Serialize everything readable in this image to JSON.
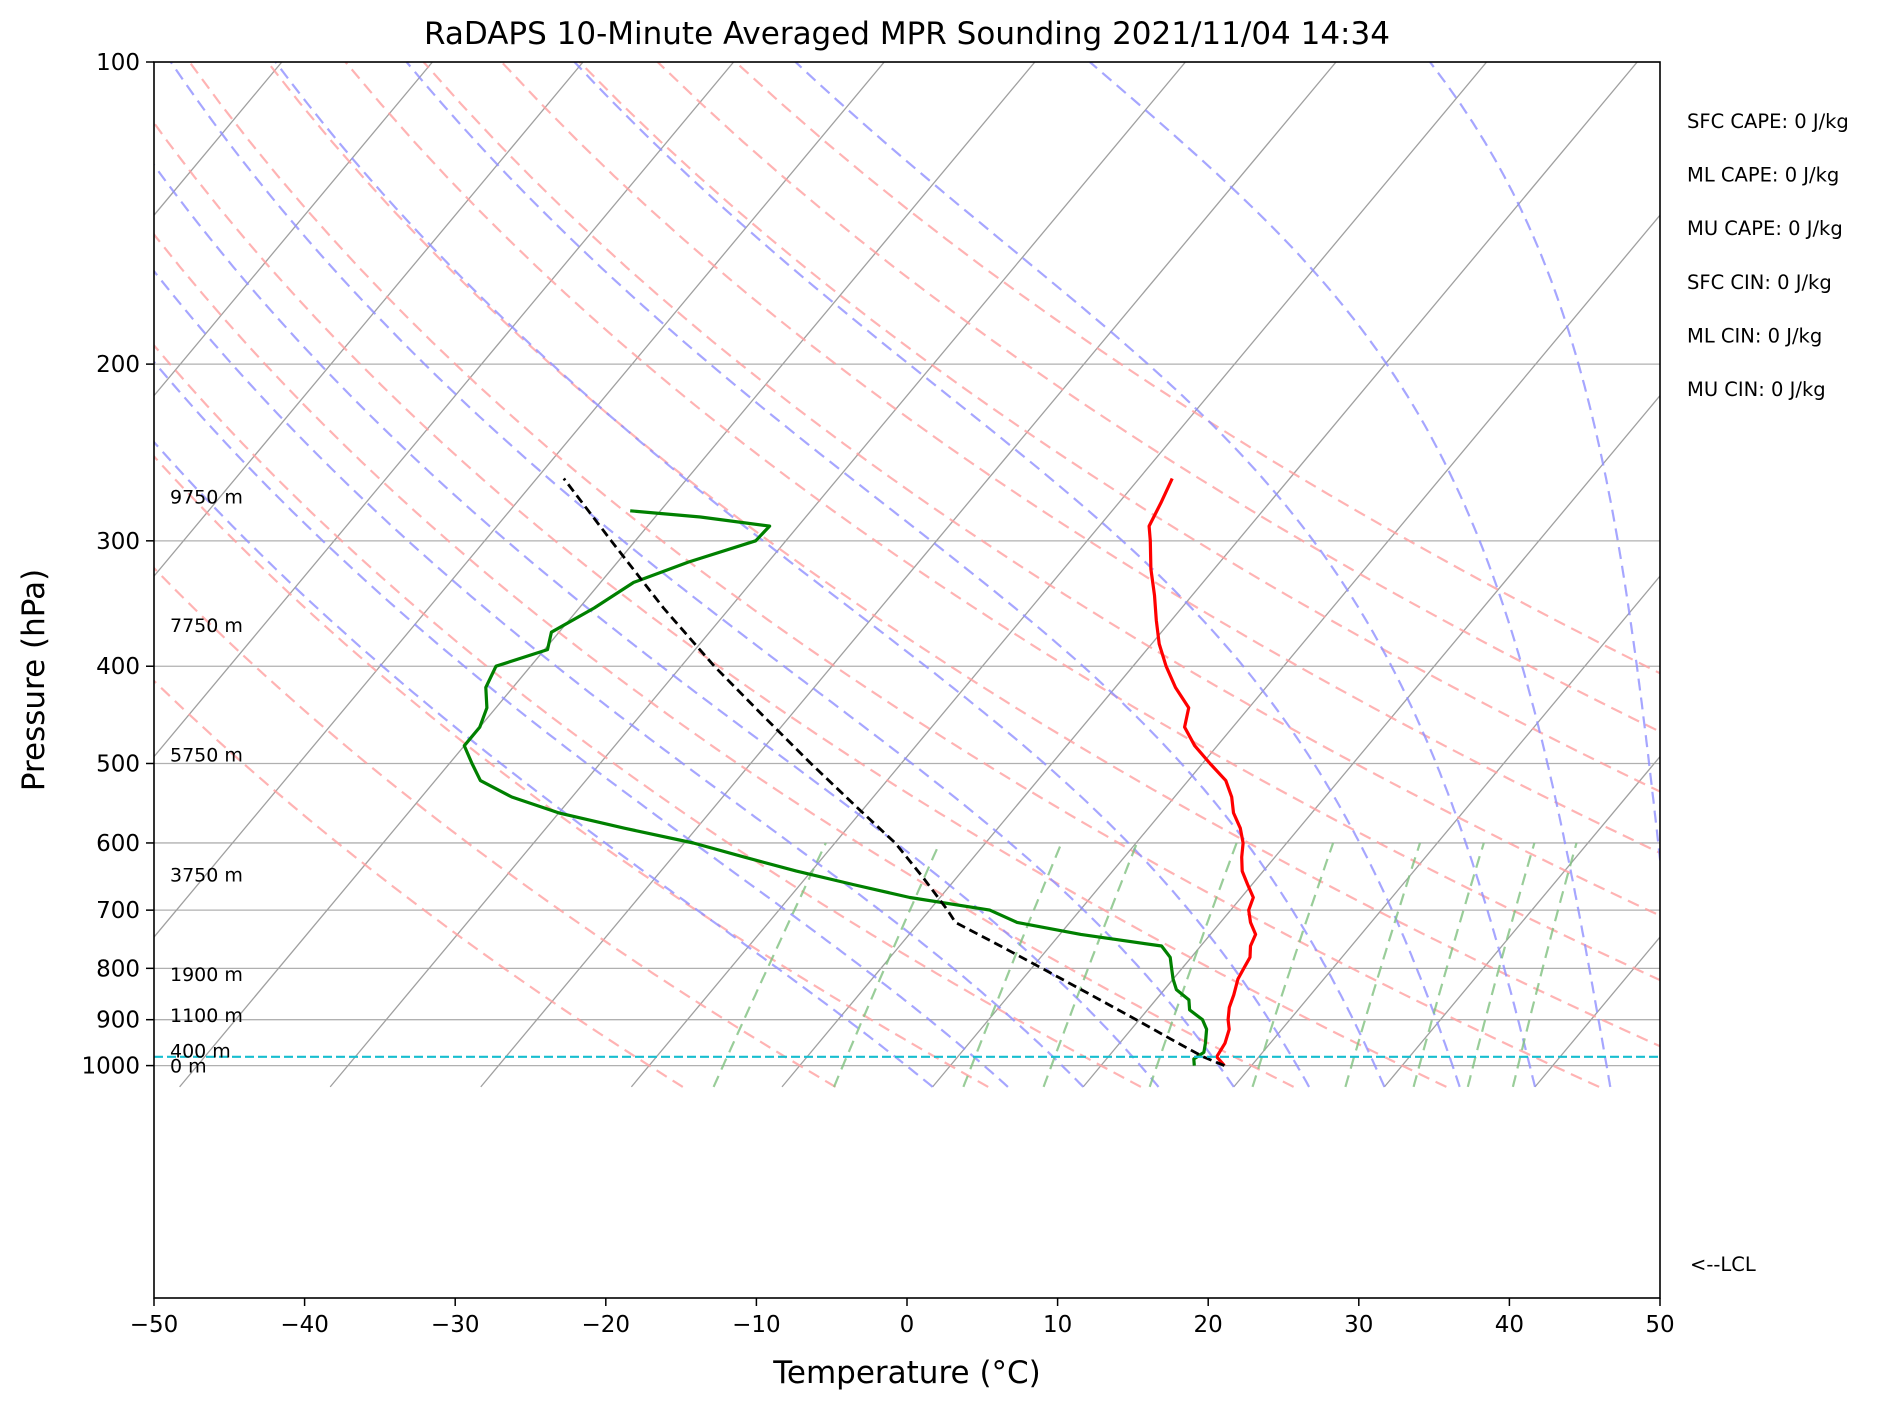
{
  "chart_data": {
    "type": "line",
    "title": "RaDAPS 10-Minute Averaged MPR Sounding 2021/11/04 14:34",
    "xlabel": "Temperature (°C)",
    "ylabel": "Pressure (hPa)",
    "xlim": [
      -50,
      50
    ],
    "ylim": [
      1050,
      100
    ],
    "y_scale": "log",
    "grid": true,
    "x_ticks": [
      -50,
      -40,
      -30,
      -20,
      -10,
      0,
      10,
      20,
      30,
      40,
      50
    ],
    "x_tick_labels": [
      "−50",
      "−40",
      "−30",
      "−20",
      "−10",
      "0",
      "10",
      "20",
      "30",
      "40",
      "50"
    ],
    "y_ticks": [
      100,
      200,
      300,
      400,
      500,
      600,
      700,
      800,
      900,
      1000
    ],
    "y_tick_labels": [
      "100",
      "200",
      "300",
      "400",
      "500",
      "600",
      "700",
      "800",
      "900",
      "1000"
    ],
    "skew": true,
    "isotherms": [
      -120,
      -110,
      -100,
      -90,
      -80,
      -70,
      -60,
      -50,
      -40,
      -30,
      -20,
      -10,
      0,
      10,
      20,
      30,
      40,
      50
    ],
    "dry_adiabats_theta_c": [
      -30,
      -20,
      -10,
      0,
      10,
      20,
      30,
      40,
      50,
      60,
      70,
      80,
      90,
      100
    ],
    "moist_adiabats_start_c": [
      -10,
      -5,
      0,
      5,
      10,
      15,
      20,
      25,
      30,
      35,
      40
    ],
    "mixing_ratio_lines_gkg": [
      0.5,
      1,
      2,
      3,
      5,
      8,
      12,
      16,
      20,
      24
    ],
    "series": [
      {
        "role": "temperature",
        "color": "#ff0000",
        "points": [
          [
            1000,
            8.2
          ],
          [
            980,
            7.2
          ],
          [
            950,
            7.0
          ],
          [
            920,
            6.5
          ],
          [
            900,
            5.9
          ],
          [
            875,
            5.3
          ],
          [
            850,
            4.9
          ],
          [
            820,
            4.3
          ],
          [
            800,
            4.1
          ],
          [
            780,
            3.9
          ],
          [
            760,
            3.3
          ],
          [
            740,
            3.0
          ],
          [
            720,
            2.0
          ],
          [
            700,
            1.2
          ],
          [
            680,
            0.8
          ],
          [
            660,
            -0.3
          ],
          [
            640,
            -1.4
          ],
          [
            620,
            -2.2
          ],
          [
            600,
            -2.9
          ],
          [
            580,
            -3.9
          ],
          [
            560,
            -5.2
          ],
          [
            540,
            -6.2
          ],
          [
            520,
            -7.5
          ],
          [
            500,
            -9.5
          ],
          [
            480,
            -11.5
          ],
          [
            460,
            -13.2
          ],
          [
            440,
            -14.0
          ],
          [
            420,
            -16.0
          ],
          [
            400,
            -17.8
          ],
          [
            380,
            -19.5
          ],
          [
            360,
            -21.0
          ],
          [
            340,
            -22.5
          ],
          [
            320,
            -24.2
          ],
          [
            300,
            -25.8
          ],
          [
            290,
            -26.7
          ],
          [
            275,
            -27.2
          ],
          [
            260,
            -27.8
          ]
        ]
      },
      {
        "role": "dewpoint",
        "color": "#008000",
        "points": [
          [
            1000,
            6.2
          ],
          [
            985,
            5.8
          ],
          [
            970,
            6.1
          ],
          [
            950,
            5.7
          ],
          [
            920,
            5.0
          ],
          [
            900,
            4.2
          ],
          [
            880,
            2.8
          ],
          [
            860,
            2.2
          ],
          [
            840,
            0.8
          ],
          [
            820,
            0.0
          ],
          [
            800,
            -0.7
          ],
          [
            780,
            -1.4
          ],
          [
            760,
            -2.6
          ],
          [
            740,
            -8.6
          ],
          [
            720,
            -13.5
          ],
          [
            700,
            -16.0
          ],
          [
            680,
            -22.0
          ],
          [
            660,
            -26.5
          ],
          [
            640,
            -31.0
          ],
          [
            620,
            -35.2
          ],
          [
            600,
            -39.4
          ],
          [
            580,
            -44.8
          ],
          [
            560,
            -50.0
          ],
          [
            540,
            -54.0
          ],
          [
            520,
            -57.0
          ],
          [
            500,
            -58.5
          ],
          [
            480,
            -60.0
          ],
          [
            460,
            -60.0
          ],
          [
            440,
            -60.6
          ],
          [
            420,
            -61.8
          ],
          [
            400,
            -62.3
          ],
          [
            385,
            -59.8
          ],
          [
            370,
            -60.5
          ],
          [
            350,
            -59.0
          ],
          [
            330,
            -57.8
          ],
          [
            315,
            -55.3
          ],
          [
            300,
            -52.0
          ],
          [
            290,
            -51.9
          ],
          [
            284,
            -57.0
          ],
          [
            280,
            -62.0
          ]
        ]
      },
      {
        "role": "parcel",
        "color": "#000000",
        "dashed": true,
        "points": [
          [
            1000,
            8.2
          ],
          [
            980,
            6.3
          ],
          [
            950,
            3.9
          ],
          [
            900,
            -0.2
          ],
          [
            850,
            -4.6
          ],
          [
            800,
            -9.3
          ],
          [
            760,
            -13.3
          ],
          [
            720,
            -17.6
          ],
          [
            700,
            -18.8
          ],
          [
            650,
            -22.2
          ],
          [
            600,
            -26.0
          ],
          [
            550,
            -30.8
          ],
          [
            500,
            -36.0
          ],
          [
            450,
            -41.6
          ],
          [
            400,
            -47.8
          ],
          [
            350,
            -54.4
          ],
          [
            300,
            -61.6
          ],
          [
            260,
            -68.2
          ]
        ]
      }
    ],
    "lcl_pressure_hpa": 980,
    "lcl_label": "<--LCL",
    "height_labels": [
      {
        "p": 1000,
        "text": "0 m"
      },
      {
        "p": 966,
        "text": "400 m"
      },
      {
        "p": 890,
        "text": "1100 m"
      },
      {
        "p": 810,
        "text": "1900 m"
      },
      {
        "p": 645,
        "text": "3750 m"
      },
      {
        "p": 490,
        "text": "5750 m"
      },
      {
        "p": 364,
        "text": "7750 m"
      },
      {
        "p": 271,
        "text": "9750 m"
      }
    ],
    "indices": [
      "SFC CAPE: 0 J/kg",
      "ML CAPE: 0 J/kg",
      "MU CAPE: 0 J/kg",
      "SFC CIN: 0 J/kg",
      "ML CIN: 0 J/kg",
      "MU CIN: 0 J/kg"
    ],
    "colors": {
      "isobar": "#b0b0b0",
      "isotherm": "#a0a0a0",
      "dry_adiabat": "#ffa0a0",
      "moist_adiabat": "#9090ff",
      "mixing_ratio": "#80c080",
      "lcl_line": "#17becf"
    }
  }
}
